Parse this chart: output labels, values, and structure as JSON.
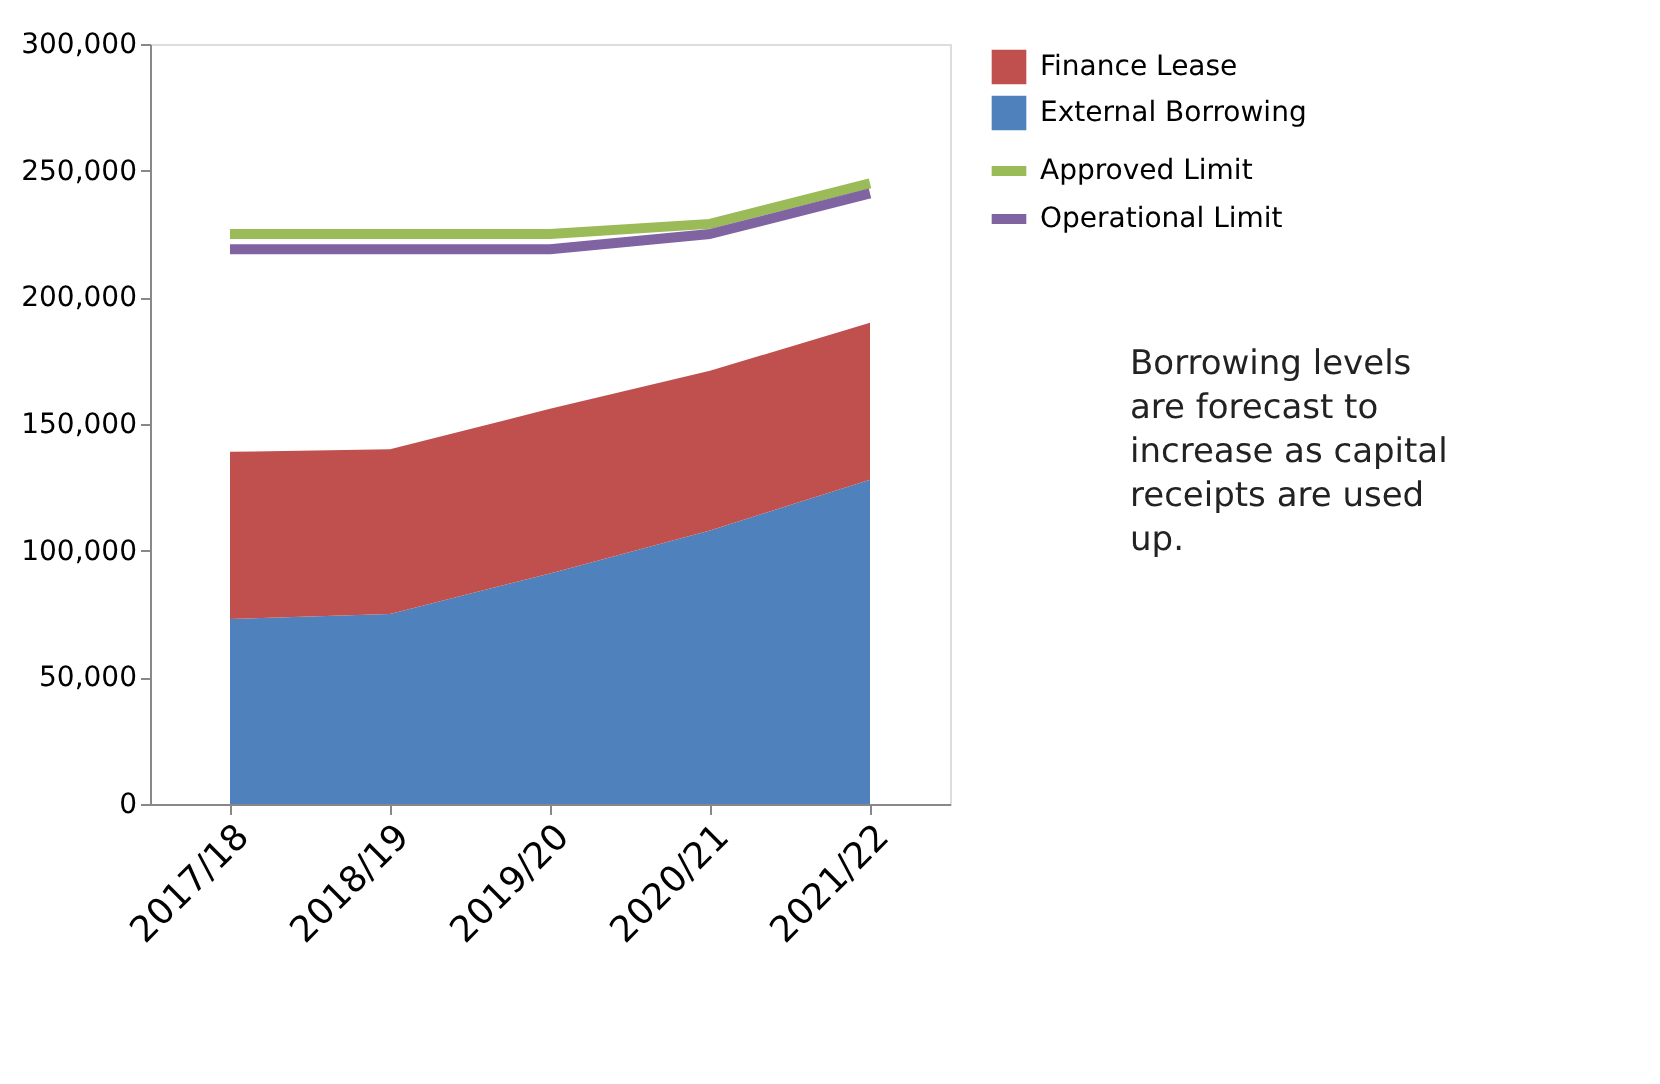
{
  "chart_data": {
    "type": "area",
    "stacked": true,
    "categories": [
      "2017/18",
      "2018/19",
      "2019/20",
      "2020/21",
      "2021/22"
    ],
    "series": [
      {
        "name": "External Borrowing",
        "color": "#4f81bd",
        "values": [
          73000,
          75000,
          91000,
          108000,
          128000
        ]
      },
      {
        "name": "Finance Lease",
        "color": "#c0504d",
        "values": [
          66000,
          65000,
          65000,
          63000,
          62000
        ]
      },
      {
        "name": "Approved Limit",
        "type": "line",
        "color": "#9bbb59",
        "values": [
          225000,
          225000,
          225000,
          229000,
          245000
        ]
      },
      {
        "name": "Operational Limit",
        "type": "line",
        "color": "#8064a2",
        "values": [
          219000,
          219000,
          219000,
          225000,
          241000
        ]
      }
    ],
    "ylim": [
      0,
      300000
    ],
    "yticks": [
      0,
      {
        "value": 50000,
        "label": "50,000"
      },
      {
        "value": 100000,
        "label": "100,000"
      },
      {
        "value": 150000,
        "label": "150,000"
      },
      {
        "value": 200000,
        "label": "200,000"
      },
      {
        "value": 250000,
        "label": "250,000"
      },
      {
        "value": 300000,
        "label": "300,000"
      }
    ],
    "grid": false,
    "legend": "top right",
    "marker": "none",
    "annotations": [
      "Borrowing levels are forecast to increase as capital receipts are used up."
    ]
  }
}
